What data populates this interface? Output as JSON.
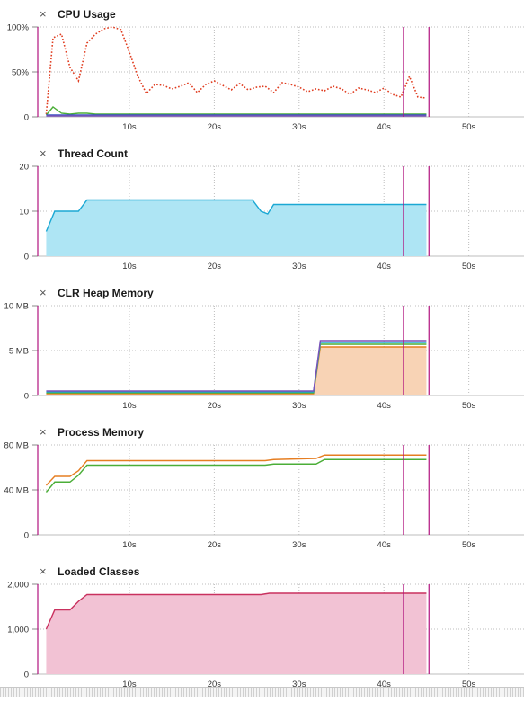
{
  "colors": {
    "marker": "#b0127e",
    "grid": "#bdbdbd"
  },
  "x_axis": {
    "ticks": [
      10,
      20,
      30,
      40,
      50
    ],
    "tick_suffix": "s",
    "range": [
      -0.8,
      56.5
    ]
  },
  "markers_x": [
    42.3,
    45.3
  ],
  "panels": [
    {
      "id": "cpu",
      "title": "CPU Usage",
      "close_label": "×",
      "top": 6,
      "chart_data": {
        "type": "line",
        "ylim": [
          0,
          100
        ],
        "y_ticks": [
          {
            "v": 0,
            "label": "0"
          },
          {
            "v": 50,
            "label": "50%"
          },
          {
            "v": 100,
            "label": "100%"
          }
        ],
        "series": [
          {
            "color": "#e03c1f",
            "style": "dotted",
            "fill": false,
            "points": [
              [
                0.2,
                3
              ],
              [
                1,
                88
              ],
              [
                2,
                92
              ],
              [
                3,
                55
              ],
              [
                4,
                40
              ],
              [
                5,
                82
              ],
              [
                6,
                92
              ],
              [
                7,
                98
              ],
              [
                8,
                100
              ],
              [
                9,
                97
              ],
              [
                10,
                72
              ],
              [
                11,
                45
              ],
              [
                12,
                26
              ],
              [
                13,
                36
              ],
              [
                14,
                35
              ],
              [
                15,
                31
              ],
              [
                16,
                34
              ],
              [
                17,
                38
              ],
              [
                18,
                27
              ],
              [
                19,
                36
              ],
              [
                20,
                40
              ],
              [
                21,
                35
              ],
              [
                22,
                30
              ],
              [
                23,
                37
              ],
              [
                24,
                30
              ],
              [
                25,
                33
              ],
              [
                26,
                34
              ],
              [
                27,
                27
              ],
              [
                28,
                38
              ],
              [
                29,
                36
              ],
              [
                30,
                33
              ],
              [
                31,
                28
              ],
              [
                32,
                31
              ],
              [
                33,
                29
              ],
              [
                34,
                34
              ],
              [
                35,
                31
              ],
              [
                36,
                25
              ],
              [
                37,
                32
              ],
              [
                38,
                30
              ],
              [
                39,
                27
              ],
              [
                40,
                32
              ],
              [
                41,
                25
              ],
              [
                42,
                22
              ],
              [
                43,
                45
              ],
              [
                44,
                22
              ],
              [
                45,
                21
              ]
            ]
          },
          {
            "color": "#4bae38",
            "style": "solid",
            "fill": false,
            "points": [
              [
                0.2,
                2
              ],
              [
                1,
                11
              ],
              [
                2,
                4
              ],
              [
                3,
                3
              ],
              [
                4,
                4
              ],
              [
                5,
                4
              ],
              [
                6,
                3
              ],
              [
                7,
                3
              ],
              [
                45,
                3
              ]
            ]
          },
          {
            "color": "#3a53c4",
            "style": "solid",
            "fill": false,
            "points": [
              [
                0.2,
                2
              ],
              [
                45,
                2
              ]
            ]
          },
          {
            "color": "#7a52b8",
            "style": "solid",
            "fill": false,
            "points": [
              [
                0.2,
                1
              ],
              [
                45,
                1
              ]
            ]
          }
        ]
      }
    },
    {
      "id": "threads",
      "title": "Thread Count",
      "close_label": "×",
      "top": 161,
      "chart_data": {
        "type": "area",
        "ylim": [
          0,
          20
        ],
        "y_ticks": [
          {
            "v": 0,
            "label": "0"
          },
          {
            "v": 10,
            "label": "10"
          },
          {
            "v": 20,
            "label": "20"
          }
        ],
        "series": [
          {
            "color": "#1ba8d4",
            "fill": "#aee5f4",
            "style": "solid",
            "points": [
              [
                0.2,
                5.5
              ],
              [
                1.2,
                10
              ],
              [
                4,
                10
              ],
              [
                5,
                12.5
              ],
              [
                24.5,
                12.5
              ],
              [
                25.5,
                10
              ],
              [
                26.3,
                9.4
              ],
              [
                27,
                11.5
              ],
              [
                45,
                11.5
              ]
            ]
          }
        ]
      }
    },
    {
      "id": "heap",
      "title": "CLR Heap Memory",
      "close_label": "×",
      "top": 316,
      "chart_data": {
        "type": "area",
        "ylim": [
          0,
          10
        ],
        "y_ticks": [
          {
            "v": 0,
            "label": "0"
          },
          {
            "v": 5,
            "label": "5 MB"
          },
          {
            "v": 10,
            "label": "10 MB"
          }
        ],
        "series": [
          {
            "color": "#e67e22",
            "fill": "#f8d3b5",
            "style": "solid",
            "points": [
              [
                0.2,
                0.2
              ],
              [
                31.7,
                0.2
              ],
              [
                32.5,
                5.4
              ],
              [
                45,
                5.4
              ]
            ]
          },
          {
            "color": "#4bae38",
            "fill": false,
            "style": "solid",
            "points": [
              [
                0.2,
                0.3
              ],
              [
                31.7,
                0.3
              ],
              [
                32.5,
                5.7
              ],
              [
                45,
                5.7
              ]
            ]
          },
          {
            "color": "#1ba8d4",
            "fill": false,
            "style": "solid",
            "points": [
              [
                0.2,
                0.4
              ],
              [
                31.7,
                0.4
              ],
              [
                32.5,
                5.9
              ],
              [
                45,
                5.9
              ]
            ]
          },
          {
            "color": "#7a52b8",
            "fill": false,
            "style": "solid",
            "points": [
              [
                0.2,
                0.5
              ],
              [
                31.7,
                0.5
              ],
              [
                32.5,
                6.1
              ],
              [
                45,
                6.1
              ]
            ]
          }
        ]
      }
    },
    {
      "id": "process",
      "title": "Process Memory",
      "close_label": "×",
      "top": 471,
      "chart_data": {
        "type": "line",
        "ylim": [
          0,
          80
        ],
        "y_ticks": [
          {
            "v": 0,
            "label": "0"
          },
          {
            "v": 40,
            "label": "40 MB"
          },
          {
            "v": 80,
            "label": "80 MB"
          }
        ],
        "series": [
          {
            "color": "#e67e22",
            "fill": false,
            "style": "solid",
            "points": [
              [
                0.2,
                44
              ],
              [
                1.2,
                52
              ],
              [
                3,
                52
              ],
              [
                4,
                57
              ],
              [
                5,
                66
              ],
              [
                26,
                66
              ],
              [
                27,
                67
              ],
              [
                32,
                68
              ],
              [
                33,
                71
              ],
              [
                45,
                71
              ]
            ]
          },
          {
            "color": "#4bae38",
            "fill": false,
            "style": "solid",
            "points": [
              [
                0.2,
                38
              ],
              [
                1.2,
                47
              ],
              [
                3,
                47
              ],
              [
                4,
                53
              ],
              [
                5,
                62
              ],
              [
                26,
                62
              ],
              [
                27,
                63
              ],
              [
                32,
                63
              ],
              [
                33,
                67
              ],
              [
                45,
                67
              ]
            ]
          }
        ]
      }
    },
    {
      "id": "classes",
      "title": "Loaded Classes",
      "close_label": "×",
      "top": 626,
      "chart_data": {
        "type": "area",
        "ylim": [
          0,
          2000
        ],
        "y_ticks": [
          {
            "v": 0,
            "label": "0"
          },
          {
            "v": 1000,
            "label": "1,000"
          },
          {
            "v": 2000,
            "label": "2,000"
          }
        ],
        "series": [
          {
            "color": "#c9315f",
            "fill": "#f2c2d4",
            "style": "solid",
            "points": [
              [
                0.2,
                1000
              ],
              [
                1.2,
                1430
              ],
              [
                3,
                1430
              ],
              [
                4,
                1620
              ],
              [
                5,
                1770
              ],
              [
                25.5,
                1770
              ],
              [
                26.5,
                1800
              ],
              [
                45,
                1800
              ]
            ]
          }
        ]
      }
    }
  ]
}
